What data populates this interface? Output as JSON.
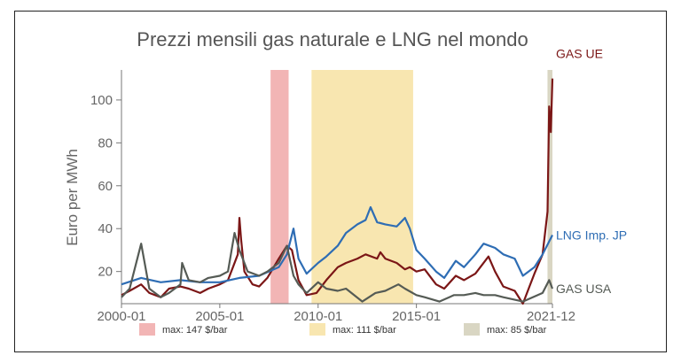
{
  "chart_data": {
    "type": "line",
    "title": "Prezzi mensili gas naturale e LNG nel mondo",
    "ylabel": "Euro per MWh",
    "xlabel": "",
    "x_ticks": [
      "2000-01",
      "2005-01",
      "2010-01",
      "2015-01",
      "2021-12"
    ],
    "y_ticks": [
      20,
      40,
      60,
      80,
      100
    ],
    "xlim": [
      "2000-01",
      "2021-12"
    ],
    "ylim": [
      5,
      114
    ],
    "grid": false,
    "series": [
      {
        "name": "GAS UE",
        "color": "#7b1616",
        "points": [
          [
            "2000-01",
            9
          ],
          [
            "2000-06",
            11
          ],
          [
            "2001-01",
            14
          ],
          [
            "2001-06",
            10
          ],
          [
            "2002-01",
            8
          ],
          [
            "2002-06",
            12
          ],
          [
            "2003-01",
            13
          ],
          [
            "2003-06",
            12
          ],
          [
            "2004-01",
            10
          ],
          [
            "2004-06",
            12
          ],
          [
            "2005-01",
            14
          ],
          [
            "2005-06",
            16
          ],
          [
            "2005-09",
            22
          ],
          [
            "2005-12",
            28
          ],
          [
            "2006-01",
            45
          ],
          [
            "2006-02",
            35
          ],
          [
            "2006-04",
            20
          ],
          [
            "2006-09",
            14
          ],
          [
            "2007-01",
            13
          ],
          [
            "2007-06",
            17
          ],
          [
            "2008-01",
            26
          ],
          [
            "2008-06",
            32
          ],
          [
            "2008-09",
            30
          ],
          [
            "2009-01",
            16
          ],
          [
            "2009-06",
            9
          ],
          [
            "2009-12",
            10
          ],
          [
            "2010-06",
            16
          ],
          [
            "2011-01",
            22
          ],
          [
            "2011-06",
            24
          ],
          [
            "2012-01",
            26
          ],
          [
            "2012-06",
            28
          ],
          [
            "2013-01",
            26
          ],
          [
            "2013-03",
            29
          ],
          [
            "2013-06",
            26
          ],
          [
            "2014-01",
            24
          ],
          [
            "2014-06",
            21
          ],
          [
            "2014-09",
            22
          ],
          [
            "2015-01",
            20
          ],
          [
            "2015-06",
            21
          ],
          [
            "2016-01",
            14
          ],
          [
            "2016-06",
            12
          ],
          [
            "2017-01",
            18
          ],
          [
            "2017-06",
            16
          ],
          [
            "2018-01",
            19
          ],
          [
            "2018-09",
            27
          ],
          [
            "2019-01",
            20
          ],
          [
            "2019-06",
            13
          ],
          [
            "2020-01",
            11
          ],
          [
            "2020-06",
            5
          ],
          [
            "2020-10",
            13
          ],
          [
            "2021-01",
            19
          ],
          [
            "2021-06",
            28
          ],
          [
            "2021-09",
            48
          ],
          [
            "2021-10",
            97
          ],
          [
            "2021-11",
            85
          ],
          [
            "2021-12",
            110
          ]
        ]
      },
      {
        "name": "LNG Imp. JP",
        "color": "#2e6db4",
        "points": [
          [
            "2000-01",
            14
          ],
          [
            "2001-01",
            17
          ],
          [
            "2002-01",
            15
          ],
          [
            "2003-01",
            16
          ],
          [
            "2004-01",
            15
          ],
          [
            "2005-01",
            15
          ],
          [
            "2006-01",
            17
          ],
          [
            "2007-01",
            18
          ],
          [
            "2008-01",
            22
          ],
          [
            "2008-06",
            28
          ],
          [
            "2008-10",
            40
          ],
          [
            "2009-01",
            26
          ],
          [
            "2009-06",
            19
          ],
          [
            "2010-01",
            24
          ],
          [
            "2010-06",
            27
          ],
          [
            "2011-01",
            32
          ],
          [
            "2011-06",
            38
          ],
          [
            "2012-01",
            42
          ],
          [
            "2012-06",
            44
          ],
          [
            "2012-09",
            50
          ],
          [
            "2013-01",
            43
          ],
          [
            "2013-06",
            42
          ],
          [
            "2014-01",
            41
          ],
          [
            "2014-06",
            45
          ],
          [
            "2014-09",
            40
          ],
          [
            "2015-01",
            30
          ],
          [
            "2015-06",
            26
          ],
          [
            "2016-01",
            20
          ],
          [
            "2016-06",
            17
          ],
          [
            "2017-01",
            25
          ],
          [
            "2017-06",
            22
          ],
          [
            "2018-01",
            28
          ],
          [
            "2018-06",
            33
          ],
          [
            "2019-01",
            31
          ],
          [
            "2019-06",
            28
          ],
          [
            "2020-01",
            26
          ],
          [
            "2020-06",
            18
          ],
          [
            "2021-01",
            22
          ],
          [
            "2021-06",
            28
          ],
          [
            "2021-12",
            37
          ]
        ]
      },
      {
        "name": "GAS USA",
        "color": "#555b55",
        "points": [
          [
            "2000-01",
            8
          ],
          [
            "2000-06",
            12
          ],
          [
            "2001-01",
            33
          ],
          [
            "2001-06",
            12
          ],
          [
            "2002-01",
            8
          ],
          [
            "2002-06",
            10
          ],
          [
            "2003-01",
            14
          ],
          [
            "2003-02",
            24
          ],
          [
            "2003-06",
            16
          ],
          [
            "2004-01",
            15
          ],
          [
            "2004-06",
            17
          ],
          [
            "2005-01",
            18
          ],
          [
            "2005-06",
            20
          ],
          [
            "2005-10",
            38
          ],
          [
            "2006-01",
            30
          ],
          [
            "2006-06",
            20
          ],
          [
            "2007-01",
            18
          ],
          [
            "2007-06",
            20
          ],
          [
            "2008-01",
            24
          ],
          [
            "2008-06",
            32
          ],
          [
            "2008-10",
            18
          ],
          [
            "2009-01",
            14
          ],
          [
            "2009-06",
            10
          ],
          [
            "2010-01",
            15
          ],
          [
            "2010-06",
            12
          ],
          [
            "2011-01",
            11
          ],
          [
            "2011-06",
            12
          ],
          [
            "2012-04",
            6
          ],
          [
            "2012-12",
            10
          ],
          [
            "2013-06",
            11
          ],
          [
            "2014-02",
            14
          ],
          [
            "2014-06",
            12
          ],
          [
            "2015-01",
            9
          ],
          [
            "2015-06",
            8
          ],
          [
            "2016-03",
            6
          ],
          [
            "2016-12",
            9
          ],
          [
            "2017-06",
            9
          ],
          [
            "2018-01",
            10
          ],
          [
            "2018-06",
            9
          ],
          [
            "2019-01",
            9
          ],
          [
            "2019-06",
            8
          ],
          [
            "2020-06",
            6
          ],
          [
            "2020-12",
            8
          ],
          [
            "2021-06",
            10
          ],
          [
            "2021-10",
            16
          ],
          [
            "2021-12",
            12
          ]
        ]
      }
    ],
    "shaded_periods": [
      {
        "start": "2007-08",
        "end": "2008-07",
        "color": "#f2b5b5",
        "legend": "max: 147 $/bar"
      },
      {
        "start": "2009-09",
        "end": "2014-11",
        "color": "#f8e6b0",
        "legend": "max: 111 $/bar"
      },
      {
        "start": "2021-09",
        "end": "2021-12",
        "color": "#d9d6c3",
        "legend": "max: 85 $/bar"
      }
    ],
    "legend_position": "bottom"
  }
}
